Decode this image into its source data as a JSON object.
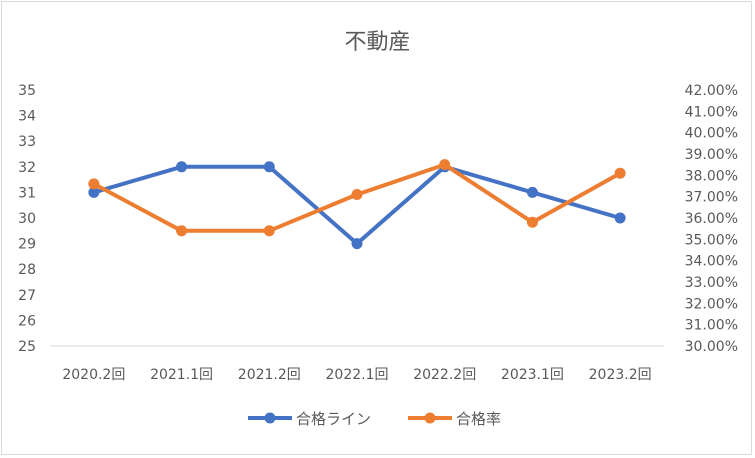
{
  "chart_data": {
    "type": "line",
    "title": "不動産",
    "categories": [
      "2020.2回",
      "2021.1回",
      "2021.2回",
      "2022.1回",
      "2022.2回",
      "2023.1回",
      "2023.2回"
    ],
    "series": [
      {
        "name": "合格ライン",
        "axis": "left",
        "color": "#4472C4",
        "values": [
          31,
          32,
          32,
          29,
          32,
          31,
          30
        ]
      },
      {
        "name": "合格率",
        "axis": "right",
        "color": "#ED7D31",
        "values": [
          37.6,
          35.4,
          35.4,
          37.1,
          38.5,
          35.8,
          38.1
        ]
      }
    ],
    "y_left": {
      "min": 25,
      "max": 35,
      "step": 1,
      "ticks": [
        "25",
        "26",
        "27",
        "28",
        "29",
        "30",
        "31",
        "32",
        "33",
        "34",
        "35"
      ]
    },
    "y_right": {
      "min": 30,
      "max": 42,
      "step": 1,
      "ticks": [
        "30.00%",
        "31.00%",
        "32.00%",
        "33.00%",
        "34.00%",
        "35.00%",
        "36.00%",
        "37.00%",
        "38.00%",
        "39.00%",
        "40.00%",
        "41.00%",
        "42.00%"
      ]
    },
    "legend_position": "bottom",
    "grid": false
  }
}
